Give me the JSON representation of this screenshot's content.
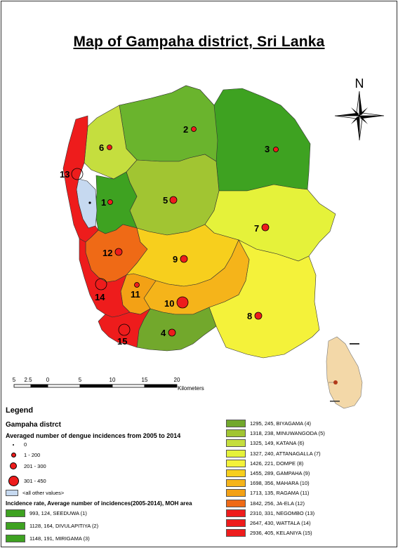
{
  "title": "Map of Gampaha district, Sri Lanka",
  "north_label": "N",
  "scale_bar": {
    "ticks": [
      "5",
      "2.5",
      "0",
      "5",
      "10",
      "15",
      "20"
    ],
    "unit": "Kilometers"
  },
  "legend": {
    "heading": "Legend",
    "layer_name": "Gampaha distrct",
    "dengue_heading": "Averaged number of dengue incidences from 2005 to 2014",
    "dot_classes": [
      {
        "label": "0",
        "size": "tiny"
      },
      {
        "label": "1 - 200",
        "size": "small"
      },
      {
        "label": "201 - 300",
        "size": "medium"
      },
      {
        "label": "301 - 450",
        "size": "large"
      }
    ],
    "other_values_label": "<all other values>",
    "other_values_color": "#c6d9f0",
    "rate_heading": "Incidence rate, Average number of incidences(2005-2014), MOH area",
    "areas": [
      {
        "num": 1,
        "label": "993, 124, SEEDUWA (1)",
        "color": "#3ea221"
      },
      {
        "num": 2,
        "label": "1128, 164, DIVULAPITIYA (2)",
        "color": "#3ea221"
      },
      {
        "num": 3,
        "label": "1148, 191, MIRIGAMA (3)",
        "color": "#3ea221"
      },
      {
        "num": 4,
        "label": "1295, 245, BIYAGAMA (4)",
        "color": "#72a82c"
      },
      {
        "num": 5,
        "label": "1318, 238, MINUWANGODA (5)",
        "color": "#a1c532"
      },
      {
        "num": 6,
        "label": "1325, 149, KATANA (6)",
        "color": "#c5de3e"
      },
      {
        "num": 7,
        "label": "1327, 240, ATTANAGALLA (7)",
        "color": "#e5f23a"
      },
      {
        "num": 8,
        "label": "1426, 221, DOMPE (8)",
        "color": "#f4f23a"
      },
      {
        "num": 9,
        "label": "1455, 289, GAMPAHA (9)",
        "color": "#f7cf1d"
      },
      {
        "num": 10,
        "label": "1698, 356, MAHARA (10)",
        "color": "#f5b41a"
      },
      {
        "num": 11,
        "label": "1713, 135, RAGAMA (11)",
        "color": "#f3a115"
      },
      {
        "num": 12,
        "label": "1842, 256, JA-ELA (12)",
        "color": "#ef6a16"
      },
      {
        "num": 13,
        "label": "2310, 331, NEGOMBO (13)",
        "color": "#ee1c1c"
      },
      {
        "num": 14,
        "label": "2647, 430, WATTALA (14)",
        "color": "#ee1c1c"
      },
      {
        "num": 15,
        "label": "2936, 405, KELANIYA (15)",
        "color": "#ee1c1c"
      }
    ]
  }
}
